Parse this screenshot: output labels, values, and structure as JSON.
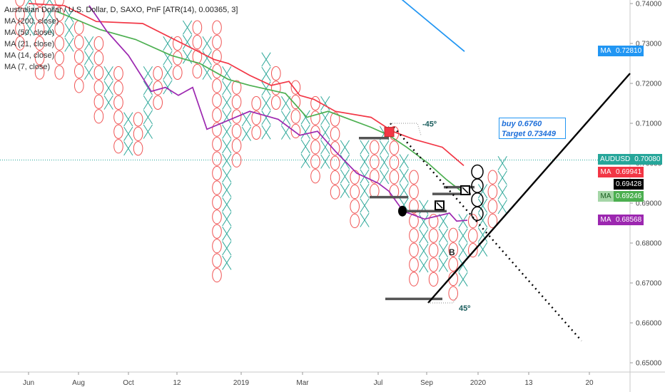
{
  "header": {
    "title": "Australian Dollar / U.S. Dollar, D, SAXO, PnF [ATR(14), 0.00365, 3]",
    "ma_legend": [
      "MA (200, close)",
      "MA (50, close)",
      "MA (21, close)",
      "MA (14, close)",
      "MA (7, close)"
    ]
  },
  "annotation": {
    "line1": "buy 0.6760",
    "line2": "Target 0.73449",
    "angle_down": "-45º",
    "angle_up": "45º",
    "letter": "B"
  },
  "price_labels": [
    {
      "label": "MA",
      "value": "0.72810",
      "color": "#2196f3"
    },
    {
      "label": "AUDUSD",
      "value": "0.70080",
      "color": "#26a69a"
    },
    {
      "label": "MA",
      "value": "0.69941",
      "color": "#f23645"
    },
    {
      "label": "",
      "value": "0.69428",
      "color": "#000000"
    },
    {
      "label": "MA",
      "value": "0.69246",
      "color": "#4caf50"
    },
    {
      "label": "MA",
      "value": "0.68568",
      "color": "#9c27b0"
    }
  ],
  "chart_data": {
    "type": "pnf",
    "symbol": "AUDUSD",
    "box_size": 0.00365,
    "reversal": 3,
    "y_ticks": [
      "0.74000",
      "0.73000",
      "0.72000",
      "0.71000",
      "0.70000",
      "0.69000",
      "0.68000",
      "0.67000",
      "0.66000",
      "0.65000"
    ],
    "x_ticks": [
      "Jun",
      "Aug",
      "Oct",
      "12",
      "2019",
      "Mar",
      "Jul",
      "Sep",
      "2020",
      "13",
      "20"
    ],
    "ylim": [
      0.6475,
      0.7408
    ],
    "last_price": 0.7008,
    "columns": [
      {
        "type": "O",
        "top": 0.741,
        "bottom": 0.728
      },
      {
        "type": "X",
        "top": 0.741,
        "bottom": 0.734
      },
      {
        "type": "O",
        "top": 0.741,
        "bottom": 0.7225
      },
      {
        "type": "X",
        "top": 0.741,
        "bottom": 0.734
      },
      {
        "type": "O",
        "top": 0.741,
        "bottom": 0.7225
      },
      {
        "type": "X",
        "top": 0.737,
        "bottom": 0.73
      },
      {
        "type": "O",
        "top": 0.734,
        "bottom": 0.719
      },
      {
        "type": "X",
        "top": 0.73,
        "bottom": 0.7225
      },
      {
        "type": "O",
        "top": 0.73,
        "bottom": 0.711
      },
      {
        "type": "X",
        "top": 0.7225,
        "bottom": 0.715
      },
      {
        "type": "O",
        "top": 0.7225,
        "bottom": 0.704
      },
      {
        "type": "X",
        "top": 0.711,
        "bottom": 0.704
      },
      {
        "type": "O",
        "top": 0.711,
        "bottom": 0.704
      },
      {
        "type": "X",
        "top": 0.7225,
        "bottom": 0.7075
      },
      {
        "type": "O",
        "top": 0.7225,
        "bottom": 0.715
      },
      {
        "type": "X",
        "top": 0.73,
        "bottom": 0.7185
      },
      {
        "type": "O",
        "top": 0.73,
        "bottom": 0.7225
      },
      {
        "type": "X",
        "top": 0.734,
        "bottom": 0.726
      },
      {
        "type": "O",
        "top": 0.734,
        "bottom": 0.7225
      },
      {
        "type": "X",
        "top": 0.73,
        "bottom": 0.7225
      },
      {
        "type": "O",
        "top": 0.734,
        "bottom": 0.6705
      },
      {
        "type": "X",
        "top": 0.7225,
        "bottom": 0.674
      },
      {
        "type": "O",
        "top": 0.719,
        "bottom": 0.7
      },
      {
        "type": "X",
        "top": 0.711,
        "bottom": 0.7075
      },
      {
        "type": "O",
        "top": 0.715,
        "bottom": 0.7075
      },
      {
        "type": "X",
        "top": 0.726,
        "bottom": 0.7075
      },
      {
        "type": "O",
        "top": 0.7225,
        "bottom": 0.715
      },
      {
        "type": "X",
        "top": 0.715,
        "bottom": 0.7075
      },
      {
        "type": "O",
        "top": 0.719,
        "bottom": 0.7075
      },
      {
        "type": "X",
        "top": 0.7115,
        "bottom": 0.6995
      },
      {
        "type": "O",
        "top": 0.715,
        "bottom": 0.6965
      },
      {
        "type": "X",
        "top": 0.715,
        "bottom": 0.7005
      },
      {
        "type": "O",
        "top": 0.711,
        "bottom": 0.6925
      },
      {
        "type": "X",
        "top": 0.704,
        "bottom": 0.6925
      },
      {
        "type": "O",
        "top": 0.6965,
        "bottom": 0.685
      },
      {
        "type": "X",
        "top": 0.704,
        "bottom": 0.6855
      },
      {
        "type": "O",
        "top": 0.704,
        "bottom": 0.6925
      },
      {
        "type": "X",
        "top": 0.7075,
        "bottom": 0.6965
      },
      {
        "type": "O",
        "top": 0.7075,
        "bottom": 0.6925
      },
      {
        "type": "X",
        "top": 0.7005,
        "bottom": 0.6895
      },
      {
        "type": "O",
        "top": 0.6965,
        "bottom": 0.6715
      },
      {
        "type": "X",
        "top": 0.689,
        "bottom": 0.6745
      },
      {
        "type": "O",
        "top": 0.6855,
        "bottom": 0.6715
      },
      {
        "type": "X",
        "top": 0.6855,
        "bottom": 0.6745
      },
      {
        "type": "O",
        "top": 0.682,
        "bottom": 0.6675
      },
      {
        "type": "X",
        "top": 0.6855,
        "bottom": 0.6705
      },
      {
        "type": "O",
        "top": 0.6855,
        "bottom": 0.678
      },
      {
        "type": "X",
        "top": 0.693,
        "bottom": 0.678
      },
      {
        "type": "O",
        "top": 0.6965,
        "bottom": 0.6855
      },
      {
        "type": "X",
        "top": 0.7,
        "bottom": 0.6895
      }
    ],
    "series": [
      {
        "name": "MA (200, close)",
        "color": "#2196f3",
        "values": [
          0.7415,
          0.728
        ]
      },
      {
        "name": "MA (50, close)",
        "color": "#f23645",
        "values": [
          0.74,
          0.7395,
          0.7355,
          0.735,
          0.7305,
          0.726,
          0.725,
          0.722,
          0.7195,
          0.7205,
          0.717,
          0.716,
          0.713,
          0.7115,
          0.708,
          0.706,
          0.704,
          0.6994
        ]
      },
      {
        "name": "MA (21, close)",
        "color": "#4caf50",
        "values": [
          0.738,
          0.7335,
          0.731,
          0.727,
          0.725,
          0.721,
          0.7195,
          0.7175,
          0.7115,
          0.713,
          0.711,
          0.709,
          0.707,
          0.704,
          0.7,
          0.696,
          0.6925
        ]
      },
      {
        "name": "MA (7, close)",
        "color": "#9c27b0",
        "values": [
          0.7395,
          0.733,
          0.727,
          0.718,
          0.719,
          0.717,
          0.719,
          0.7085,
          0.713,
          0.711,
          0.707,
          0.708,
          0.703,
          0.6975,
          0.695,
          0.693,
          0.688,
          0.686,
          0.6875,
          0.6855,
          0.6857
        ]
      }
    ],
    "levels": [
      {
        "name": "tick-level",
        "value": 0.7008
      },
      {
        "name": "buy",
        "value": 0.676
      },
      {
        "name": "target",
        "value": 0.73449
      }
    ]
  }
}
